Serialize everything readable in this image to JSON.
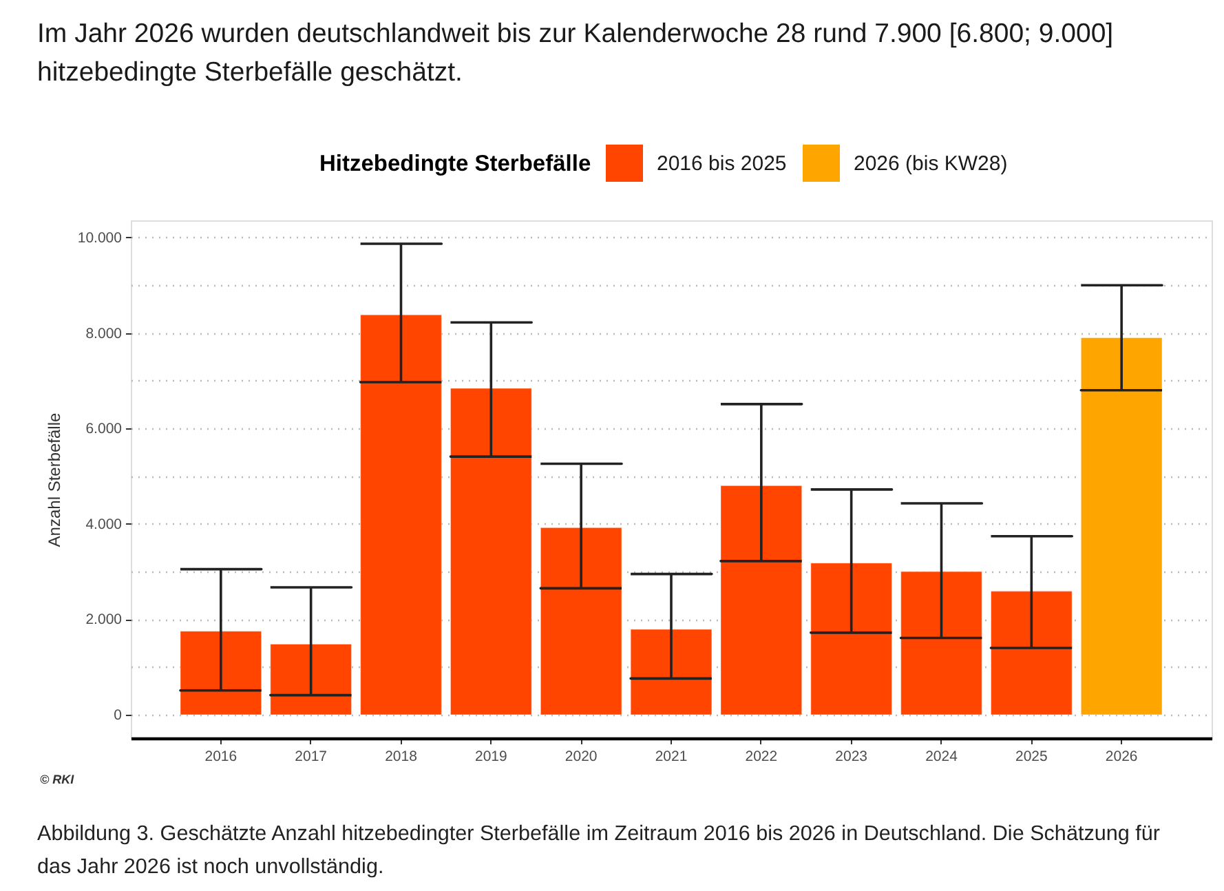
{
  "chart_data": {
    "type": "bar",
    "title": "Im Jahr 2026 wurden deutschlandweit bis zur Kalenderwoche 28 rund 7.900 [6.800; 9.000] hitzebedingte Sterbefälle geschätzt.",
    "ylabel": "Anzahl Sterbefälle",
    "legend_title": "Hitzebedingte Sterbefälle",
    "categories": [
      "2016",
      "2017",
      "2018",
      "2019",
      "2020",
      "2021",
      "2022",
      "2023",
      "2024",
      "2025",
      "2026"
    ],
    "stacked": true,
    "series": [
      {
        "name": "2016 bis 2025",
        "color": "#ff4500",
        "values": [
          1750,
          1480,
          8380,
          6840,
          3920,
          1790,
          4800,
          3180,
          3000,
          2590,
          null
        ],
        "errors": [
          [
            510,
            3050
          ],
          [
            410,
            2670
          ],
          [
            6970,
            9870
          ],
          [
            5410,
            8220
          ],
          [
            2650,
            5260
          ],
          [
            760,
            2950
          ],
          [
            3220,
            6510
          ],
          [
            1720,
            4720
          ],
          [
            1610,
            4430
          ],
          [
            1400,
            3740
          ],
          null
        ]
      },
      {
        "name": "2026 (bis KW28)",
        "color": "#ffa500",
        "values": [
          null,
          null,
          null,
          null,
          null,
          null,
          null,
          null,
          null,
          null,
          7900
        ],
        "errors": [
          null,
          null,
          null,
          null,
          null,
          null,
          null,
          null,
          null,
          null,
          [
            6800,
            9000
          ]
        ]
      }
    ],
    "ylim": [
      -490,
      10360
    ],
    "yticks": [
      0,
      {
        "value": 1000,
        "label": null
      },
      {
        "value": 2000,
        "label": "2.000"
      },
      {
        "value": 3000,
        "label": null
      },
      {
        "value": 4000,
        "label": "4.000"
      },
      {
        "value": 5000,
        "label": null
      },
      {
        "value": 6000,
        "label": "6.000"
      },
      {
        "value": 7000,
        "label": null
      },
      {
        "value": 8000,
        "label": "8.000"
      },
      {
        "value": 9000,
        "label": null
      },
      {
        "value": 10000,
        "label": "10.000"
      }
    ],
    "grid": "y",
    "legend": "top",
    "annotations": [
      "© RKI",
      "Abbildung 3. Geschätzte Anzahl hitzebedingter Sterbefälle im Zeitraum 2016 bis 2026 in Deutschland. Die Schätzung für das Jahr 2026 ist noch unvollständig."
    ]
  }
}
